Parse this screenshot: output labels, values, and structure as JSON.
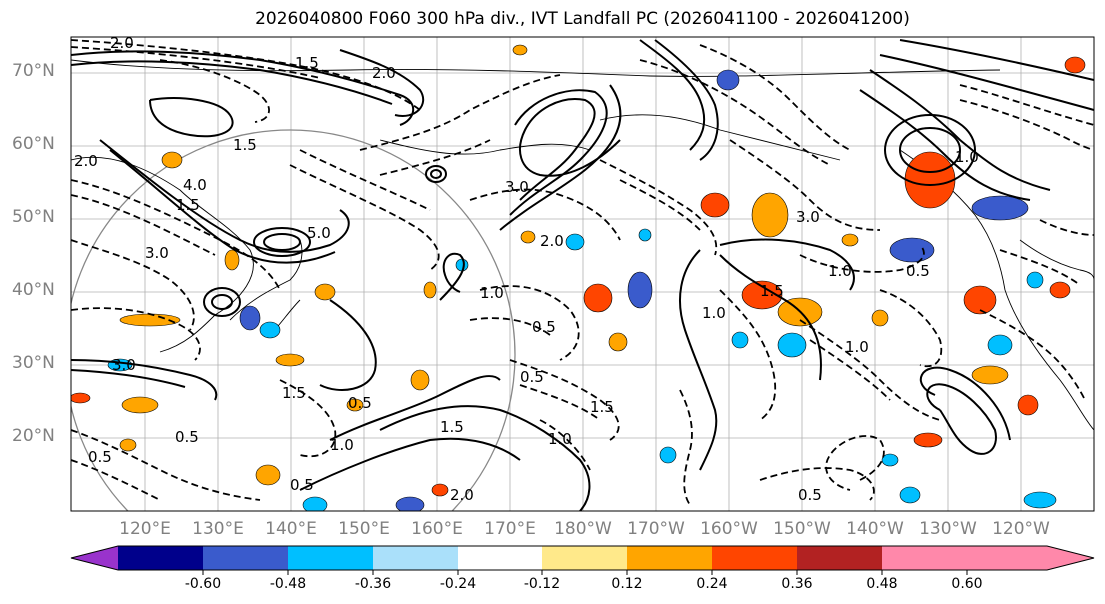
{
  "title": "2026040800 F060 300 hPa div., IVT Landfall PC (2026041100 - 2026041200)",
  "latitude_labels": [
    "70°N",
    "60°N",
    "50°N",
    "40°N",
    "30°N",
    "20°N"
  ],
  "longitude_labels": [
    "120°E",
    "130°E",
    "140°E",
    "150°E",
    "160°E",
    "170°E",
    "180°W",
    "170°W",
    "160°W",
    "150°W",
    "140°W",
    "130°W",
    "120°W"
  ],
  "contour_labels": [
    "2.0",
    "1.5",
    "2.0",
    "2.0",
    "1.5",
    "4.0",
    "1.5",
    "3.0",
    "5.0",
    "3.0",
    "1.0",
    "3.0",
    "2.0",
    "1.0",
    "0.5",
    "0.5",
    "1.0",
    "1.5",
    "1.0",
    "0.5",
    "0.5",
    "1.5",
    "1.5",
    "1.0",
    "2.0",
    "1.5",
    "1.0",
    "0.5",
    "0.5",
    "1.0",
    "0.5",
    "3.0",
    "0.5"
  ],
  "colorbar": {
    "colors": [
      "#9933cc",
      "#00008b",
      "#3a5bcc",
      "#00bfff",
      "#aae0fa",
      "#ffffff",
      "#ffe98a",
      "#ffa500",
      "#ff4500",
      "#b22222",
      "#ff88aa"
    ],
    "tick_labels": [
      "-0.60",
      "-0.48",
      "-0.36",
      "-0.24",
      "-0.12",
      "0.12",
      "0.24",
      "0.36",
      "0.48",
      "0.60"
    ]
  }
}
